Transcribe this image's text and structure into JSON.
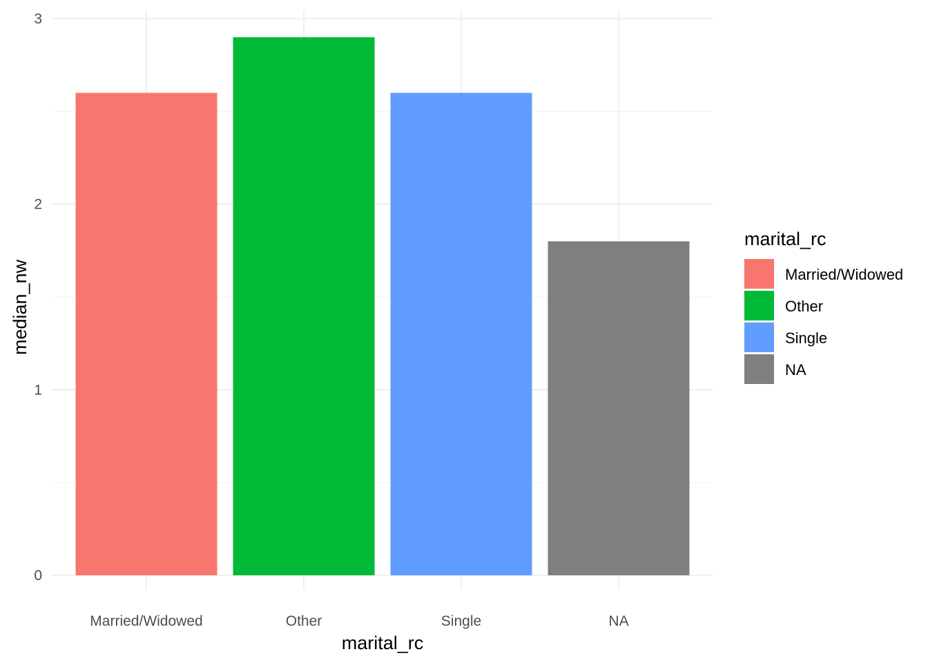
{
  "chart_data": {
    "type": "bar",
    "categories": [
      "Married/Widowed",
      "Other",
      "Single",
      "NA"
    ],
    "values": [
      2.6,
      2.9,
      2.6,
      1.8
    ],
    "colors": [
      "#F8766D",
      "#00BA38",
      "#619CFF",
      "#7F7F7F"
    ],
    "xlabel": "marital_rc",
    "ylabel": "median_nw",
    "ylim": [
      0,
      3
    ],
    "yticks": [
      0,
      1,
      2,
      3
    ],
    "ytick_labels": [
      "0",
      "1",
      "2",
      "3"
    ],
    "grid": true,
    "legend": {
      "title": "marital_rc",
      "position": "right",
      "entries": [
        "Married/Widowed",
        "Other",
        "Single",
        "NA"
      ]
    }
  }
}
